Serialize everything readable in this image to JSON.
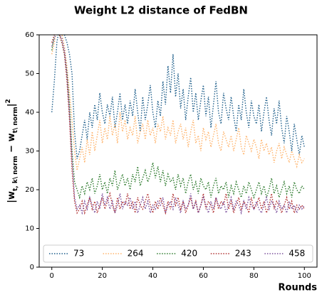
{
  "chart_data": {
    "type": "line",
    "title": "Weight L2 distance of FedBN",
    "xlabel": "Rounds",
    "ylabel": [
      {
        "text": "|w"
      },
      {
        "text": "t, k\\ norm",
        "script": "sub"
      },
      {
        "text": " − w"
      },
      {
        "text": "t\\ norm",
        "script": "sub"
      },
      {
        "text": "|"
      },
      {
        "text": "2",
        "script": "super"
      }
    ],
    "xlim": [
      -5,
      105
    ],
    "ylim": [
      0,
      60
    ],
    "xticks": [
      0,
      20,
      40,
      60,
      80,
      100
    ],
    "yticks": [
      0,
      10,
      20,
      30,
      40,
      50,
      60
    ],
    "grid": false,
    "legend": "lower center",
    "legend_columns": 5,
    "line_style": "dotted",
    "x": [
      0,
      1,
      2,
      3,
      4,
      5,
      6,
      7,
      8,
      9,
      10,
      11,
      12,
      13,
      14,
      15,
      16,
      17,
      18,
      19,
      20,
      21,
      22,
      23,
      24,
      25,
      26,
      27,
      28,
      29,
      30,
      31,
      32,
      33,
      34,
      35,
      36,
      37,
      38,
      39,
      40,
      41,
      42,
      43,
      44,
      45,
      46,
      47,
      48,
      49,
      50,
      51,
      52,
      53,
      54,
      55,
      56,
      57,
      58,
      59,
      60,
      61,
      62,
      63,
      64,
      65,
      66,
      67,
      68,
      69,
      70,
      71,
      72,
      73,
      74,
      75,
      76,
      77,
      78,
      79,
      80,
      81,
      82,
      83,
      84,
      85,
      86,
      87,
      88,
      89,
      90,
      91,
      92,
      93,
      94,
      95,
      96,
      97,
      98,
      99,
      100
    ],
    "series": [
      {
        "name": "73",
        "color": "#1f5f8b",
        "values": [
          40,
          48,
          58,
          62,
          63,
          60,
          58,
          55,
          50,
          35,
          28,
          30,
          34,
          38,
          33,
          40,
          36,
          42,
          38,
          45,
          40,
          37,
          42,
          39,
          44,
          36,
          40,
          45,
          38,
          42,
          37,
          43,
          39,
          46,
          40,
          35,
          44,
          38,
          42,
          47,
          40,
          36,
          43,
          39,
          48,
          42,
          52,
          45,
          55,
          44,
          50,
          41,
          46,
          38,
          44,
          49,
          40,
          45,
          38,
          43,
          47,
          39,
          44,
          36,
          42,
          48,
          40,
          37,
          45,
          41,
          38,
          44,
          39,
          35,
          42,
          38,
          46,
          40,
          36,
          43,
          39,
          37,
          42,
          35,
          40,
          44,
          38,
          34,
          41,
          37,
          43,
          36,
          32,
          39,
          35,
          30,
          37,
          33,
          29,
          34,
          31
        ]
      },
      {
        "name": "264",
        "color": "#ffb36b",
        "values": [
          55,
          58,
          62,
          61,
          60,
          57,
          52,
          45,
          38,
          30,
          25,
          28,
          31,
          27,
          33,
          29,
          35,
          30,
          34,
          38,
          32,
          36,
          33,
          39,
          34,
          37,
          32,
          40,
          35,
          38,
          33,
          36,
          34,
          39,
          32,
          35,
          37,
          33,
          38,
          34,
          36,
          32,
          37,
          35,
          39,
          33,
          36,
          34,
          38,
          32,
          35,
          37,
          33,
          36,
          31,
          35,
          38,
          32,
          34,
          30,
          36,
          33,
          35,
          31,
          34,
          37,
          32,
          30,
          35,
          33,
          31,
          34,
          30,
          33,
          36,
          31,
          29,
          34,
          32,
          30,
          33,
          31,
          28,
          33,
          30,
          32,
          29,
          31,
          27,
          30,
          32,
          28,
          31,
          29,
          27,
          30,
          28,
          26,
          29,
          27,
          28
        ]
      },
      {
        "name": "420",
        "color": "#2c7a2c",
        "values": [
          56,
          60,
          62,
          60,
          58,
          55,
          50,
          42,
          30,
          22,
          20,
          18,
          21,
          19,
          22,
          20,
          23,
          19,
          21,
          24,
          20,
          22,
          19,
          23,
          21,
          25,
          20,
          22,
          24,
          21,
          23,
          20,
          24,
          22,
          26,
          21,
          23,
          25,
          22,
          24,
          27,
          23,
          26,
          22,
          25,
          21,
          24,
          22,
          23,
          20,
          24,
          21,
          23,
          19,
          22,
          24,
          20,
          22,
          19,
          23,
          21,
          20,
          22,
          18,
          21,
          23,
          19,
          21,
          20,
          22,
          18,
          21,
          19,
          22,
          20,
          18,
          21,
          19,
          22,
          20,
          18,
          20,
          22,
          19,
          21,
          18,
          20,
          23,
          19,
          21,
          18,
          20,
          22,
          19,
          21,
          18,
          22,
          20,
          19,
          21,
          20
        ]
      },
      {
        "name": "243",
        "color": "#b03030",
        "values": [
          58,
          60,
          61,
          60,
          58,
          55,
          48,
          38,
          25,
          17,
          14,
          15,
          17,
          14,
          16,
          18,
          15,
          17,
          14,
          16,
          18,
          15,
          17,
          19,
          16,
          14,
          18,
          15,
          17,
          16,
          19,
          15,
          17,
          14,
          18,
          16,
          15,
          17,
          19,
          16,
          14,
          17,
          15,
          18,
          16,
          14,
          17,
          15,
          19,
          16,
          18,
          15,
          17,
          14,
          16,
          18,
          15,
          17,
          14,
          16,
          19,
          15,
          17,
          16,
          14,
          18,
          15,
          17,
          16,
          19,
          15,
          17,
          14,
          16,
          18,
          15,
          17,
          16,
          14,
          18,
          15,
          16,
          18,
          15,
          17,
          14,
          16,
          19,
          15,
          17,
          16,
          14,
          16,
          18,
          15,
          17,
          14,
          16,
          15,
          16,
          15
        ]
      },
      {
        "name": "458",
        "color": "#7a4e9b",
        "values": [
          57,
          59,
          61,
          60,
          59,
          56,
          50,
          40,
          28,
          18,
          15,
          16,
          14,
          17,
          15,
          18,
          16,
          14,
          17,
          15,
          19,
          16,
          18,
          15,
          17,
          14,
          16,
          19,
          15,
          17,
          16,
          18,
          15,
          17,
          14,
          16,
          18,
          15,
          17,
          14,
          16,
          15,
          17,
          16,
          18,
          14,
          16,
          17,
          15,
          18,
          16,
          14,
          17,
          15,
          16,
          19,
          15,
          17,
          14,
          16,
          18,
          16,
          14,
          17,
          15,
          18,
          16,
          15,
          17,
          14,
          16,
          18,
          15,
          17,
          16,
          14,
          17,
          15,
          18,
          16,
          15,
          17,
          15,
          14,
          16,
          18,
          15,
          17,
          16,
          14,
          17,
          15,
          16,
          14,
          17,
          15,
          16,
          14,
          16,
          15,
          16
        ]
      }
    ]
  }
}
